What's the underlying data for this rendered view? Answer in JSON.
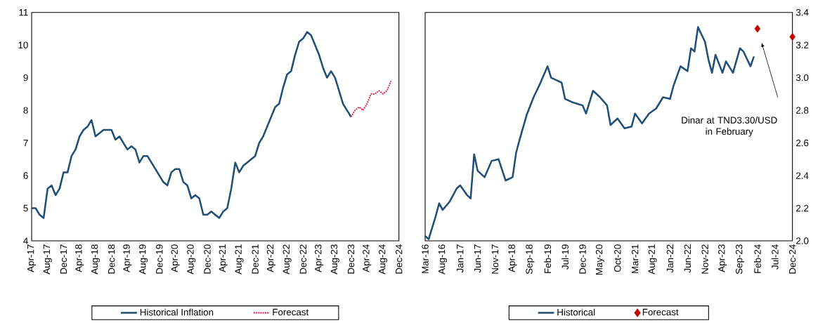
{
  "chart_data": [
    {
      "type": "line",
      "xlim": [
        "2017-04",
        "2024-12"
      ],
      "xticks": [
        {
          "value": "2017-04",
          "label": "Apr-17"
        },
        {
          "value": "2017-08",
          "label": "Aug-17"
        },
        {
          "value": "2017-12",
          "label": "Dec-17"
        },
        {
          "value": "2018-04",
          "label": "Apr-18"
        },
        {
          "value": "2018-08",
          "label": "Aug-18"
        },
        {
          "value": "2018-12",
          "label": "Dec-18"
        },
        {
          "value": "2019-04",
          "label": "Apr-19"
        },
        {
          "value": "2019-08",
          "label": "Aug-19"
        },
        {
          "value": "2019-12",
          "label": "Dec-19"
        },
        {
          "value": "2020-04",
          "label": "Apr-20"
        },
        {
          "value": "2020-08",
          "label": "Aug-20"
        },
        {
          "value": "2020-12",
          "label": "Dec-20"
        },
        {
          "value": "2021-04",
          "label": "Apr-21"
        },
        {
          "value": "2021-08",
          "label": "Aug-21"
        },
        {
          "value": "2021-12",
          "label": "Dec-21"
        },
        {
          "value": "2022-04",
          "label": "Apr-22"
        },
        {
          "value": "2022-08",
          "label": "Aug-22"
        },
        {
          "value": "2022-12",
          "label": "Dec-22"
        },
        {
          "value": "2023-04",
          "label": "Apr-23"
        },
        {
          "value": "2023-08",
          "label": "Aug-23"
        },
        {
          "value": "2023-12",
          "label": "Dec-23"
        },
        {
          "value": "2024-04",
          "label": "Apr-24"
        },
        {
          "value": "2024-08",
          "label": "Aug-24"
        },
        {
          "value": "2024-12",
          "label": "Dec-24"
        }
      ],
      "ylim": [
        4,
        11
      ],
      "yticks": [
        4,
        5,
        6,
        7,
        8,
        9,
        10,
        11
      ],
      "legend": "bottom",
      "series": [
        {
          "name": "Historical Inflation",
          "color": "#1f4e79",
          "line_style": "solid",
          "x": [
            "2017-04",
            "2017-05",
            "2017-06",
            "2017-07",
            "2017-08",
            "2017-09",
            "2017-10",
            "2017-11",
            "2017-12",
            "2018-01",
            "2018-02",
            "2018-03",
            "2018-04",
            "2018-05",
            "2018-06",
            "2018-07",
            "2018-08",
            "2018-09",
            "2018-10",
            "2018-11",
            "2018-12",
            "2019-01",
            "2019-02",
            "2019-03",
            "2019-04",
            "2019-05",
            "2019-06",
            "2019-07",
            "2019-08",
            "2019-09",
            "2019-10",
            "2019-11",
            "2019-12",
            "2020-01",
            "2020-02",
            "2020-03",
            "2020-04",
            "2020-05",
            "2020-06",
            "2020-07",
            "2020-08",
            "2020-09",
            "2020-10",
            "2020-11",
            "2020-12",
            "2021-01",
            "2021-02",
            "2021-03",
            "2021-04",
            "2021-05",
            "2021-06",
            "2021-07",
            "2021-08",
            "2021-09",
            "2021-10",
            "2021-11",
            "2021-12",
            "2022-01",
            "2022-02",
            "2022-03",
            "2022-04",
            "2022-05",
            "2022-06",
            "2022-07",
            "2022-08",
            "2022-09",
            "2022-10",
            "2022-11",
            "2022-12",
            "2023-01",
            "2023-02",
            "2023-03",
            "2023-04",
            "2023-05",
            "2023-06",
            "2023-07",
            "2023-08",
            "2023-09",
            "2023-10",
            "2023-11",
            "2023-12"
          ],
          "values": [
            5.0,
            5.0,
            4.8,
            4.7,
            5.6,
            5.7,
            5.4,
            5.6,
            6.1,
            6.1,
            6.6,
            6.8,
            7.2,
            7.4,
            7.5,
            7.7,
            7.2,
            7.3,
            7.4,
            7.4,
            7.4,
            7.1,
            7.2,
            7.0,
            6.8,
            6.9,
            6.8,
            6.4,
            6.6,
            6.6,
            6.4,
            6.2,
            6.0,
            5.8,
            5.7,
            6.1,
            6.2,
            6.2,
            5.8,
            5.7,
            5.3,
            5.4,
            5.3,
            4.8,
            4.8,
            4.9,
            4.8,
            4.7,
            4.9,
            5.0,
            5.6,
            6.4,
            6.1,
            6.3,
            6.4,
            6.5,
            6.6,
            7.0,
            7.2,
            7.5,
            7.8,
            8.1,
            8.2,
            8.7,
            9.1,
            9.2,
            9.7,
            10.1,
            10.2,
            10.4,
            10.3,
            10.0,
            9.7,
            9.3,
            9.0,
            9.2,
            9.0,
            8.6,
            8.2,
            8.0,
            7.8
          ]
        },
        {
          "name": "Forecast",
          "color": "#e0103c",
          "line_style": "dotted",
          "x": [
            "2023-12",
            "2024-01",
            "2024-02",
            "2024-03",
            "2024-04",
            "2024-05",
            "2024-06",
            "2024-07",
            "2024-08",
            "2024-09",
            "2024-10"
          ],
          "values": [
            7.8,
            8.0,
            8.1,
            8.0,
            8.2,
            8.5,
            8.5,
            8.6,
            8.5,
            8.6,
            8.9
          ]
        }
      ]
    },
    {
      "type": "line",
      "xlim": [
        "2016-03",
        "2024-12"
      ],
      "xticks": [
        {
          "value": "2016-03",
          "label": "Mar-16"
        },
        {
          "value": "2016-08",
          "label": "Aug-16"
        },
        {
          "value": "2017-01",
          "label": "Jan-17"
        },
        {
          "value": "2017-06",
          "label": "Jun-17"
        },
        {
          "value": "2017-11",
          "label": "Nov-17"
        },
        {
          "value": "2018-04",
          "label": "Apr-18"
        },
        {
          "value": "2018-09",
          "label": "Sep-18"
        },
        {
          "value": "2019-02",
          "label": "Feb-19"
        },
        {
          "value": "2019-07",
          "label": "Jul-19"
        },
        {
          "value": "2019-12",
          "label": "Dec-19"
        },
        {
          "value": "2020-05",
          "label": "May-20"
        },
        {
          "value": "2020-10",
          "label": "Oct-20"
        },
        {
          "value": "2021-03",
          "label": "Mar-21"
        },
        {
          "value": "2021-08",
          "label": "Aug-21"
        },
        {
          "value": "2022-01",
          "label": "Jan-22"
        },
        {
          "value": "2022-06",
          "label": "Jun-22"
        },
        {
          "value": "2022-11",
          "label": "Nov-22"
        },
        {
          "value": "2023-04",
          "label": "Apr-23"
        },
        {
          "value": "2023-09",
          "label": "Sep-23"
        },
        {
          "value": "2024-02",
          "label": "Feb-24"
        },
        {
          "value": "2024-07",
          "label": "Jul-24"
        },
        {
          "value": "2024-12",
          "label": "Dec-24"
        }
      ],
      "y2lim": [
        2.0,
        3.4
      ],
      "y2ticks": [
        {
          "value": 2.0,
          "label": "2.0"
        },
        {
          "value": 2.2,
          "label": "2.2"
        },
        {
          "value": 2.4,
          "label": "2.4"
        },
        {
          "value": 2.6,
          "label": "2.6"
        },
        {
          "value": 2.8,
          "label": "2.8"
        },
        {
          "value": 3.0,
          "label": "3.0"
        },
        {
          "value": 3.2,
          "label": "3.2"
        },
        {
          "value": 3.4,
          "label": "3.4"
        }
      ],
      "legend": "bottom",
      "annotations": [
        "Dinar at TND3.30/USD in February"
      ],
      "series": [
        {
          "name": "Historical",
          "color": "#1f4e79",
          "axis": "y2",
          "line_style": "solid",
          "x": [
            "2016-03",
            "2016-04",
            "2016-06",
            "2016-07",
            "2016-08",
            "2016-10",
            "2016-12",
            "2017-01",
            "2017-03",
            "2017-04",
            "2017-05",
            "2017-06",
            "2017-08",
            "2017-10",
            "2017-12",
            "2018-02",
            "2018-04",
            "2018-05",
            "2018-06",
            "2018-08",
            "2018-10",
            "2018-12",
            "2019-02",
            "2019-03",
            "2019-06",
            "2019-07",
            "2019-09",
            "2019-12",
            "2020-01",
            "2020-03",
            "2020-05",
            "2020-07",
            "2020-08",
            "2020-10",
            "2020-12",
            "2021-02",
            "2021-03",
            "2021-05",
            "2021-07",
            "2021-09",
            "2021-11",
            "2022-01",
            "2022-02",
            "2022-04",
            "2022-06",
            "2022-07",
            "2022-08",
            "2022-09",
            "2022-11",
            "2022-12",
            "2023-01",
            "2023-02",
            "2023-04",
            "2023-05",
            "2023-07",
            "2023-09",
            "2023-10",
            "2023-12",
            "2024-01"
          ],
          "values": [
            2.03,
            2.01,
            2.15,
            2.23,
            2.19,
            2.24,
            2.32,
            2.34,
            2.28,
            2.26,
            2.53,
            2.43,
            2.39,
            2.49,
            2.5,
            2.37,
            2.39,
            2.54,
            2.62,
            2.77,
            2.88,
            2.97,
            3.07,
            3.0,
            2.97,
            2.87,
            2.85,
            2.83,
            2.78,
            2.92,
            2.88,
            2.83,
            2.71,
            2.75,
            2.69,
            2.7,
            2.78,
            2.72,
            2.78,
            2.81,
            2.88,
            2.87,
            2.95,
            3.07,
            3.04,
            3.18,
            3.16,
            3.31,
            3.22,
            3.11,
            3.03,
            3.14,
            3.03,
            3.1,
            3.03,
            3.18,
            3.16,
            3.07,
            3.13
          ]
        },
        {
          "name": "Forecast",
          "type": "scatter",
          "marker": "diamond",
          "color": "#c00000",
          "axis": "y2",
          "x": [
            "2024-02",
            "2024-12"
          ],
          "values": [
            3.3,
            3.25
          ]
        }
      ]
    }
  ]
}
